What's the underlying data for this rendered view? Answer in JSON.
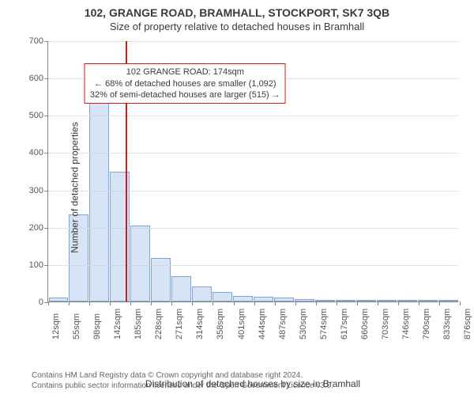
{
  "title": "102, GRANGE ROAD, BRAMHALL, STOCKPORT, SK7 3QB",
  "subtitle": "Size of property relative to detached houses in Bramhall",
  "ylabel": "Number of detached properties",
  "xlabel": "Distribution of detached houses by size in Bramhall",
  "footer1": "Contains HM Land Registry data © Crown copyright and database right 2024.",
  "footer2": "Contains public sector information licensed under the Open Government Licence v3.0.",
  "chart": {
    "type": "histogram",
    "ylim": [
      0,
      700
    ],
    "ytick_step": 100,
    "yticks": [
      0,
      100,
      200,
      300,
      400,
      500,
      600,
      700
    ],
    "xtick_labels": [
      "12sqm",
      "55sqm",
      "98sqm",
      "142sqm",
      "185sqm",
      "228sqm",
      "271sqm",
      "314sqm",
      "358sqm",
      "401sqm",
      "444sqm",
      "487sqm",
      "530sqm",
      "574sqm",
      "617sqm",
      "660sqm",
      "703sqm",
      "746sqm",
      "790sqm",
      "833sqm",
      "876sqm"
    ],
    "xtick_start": 12,
    "xtick_step": 43.3,
    "x_min": 12,
    "x_max": 876,
    "bar_color": "#d6e4f5",
    "bar_border": "#7ea6d9",
    "grid_color": "#c8c8c8",
    "background_color": "#ffffff",
    "bars": [
      10,
      235,
      600,
      348,
      205,
      117,
      68,
      40,
      25,
      15,
      12,
      10,
      7,
      3,
      2,
      2,
      1,
      1,
      0,
      1
    ],
    "vline": {
      "x_value": 174,
      "color": "#d11a1a"
    },
    "annotation": {
      "line1": "102 GRANGE ROAD: 174sqm",
      "line2": "← 68% of detached houses are smaller (1,092)",
      "line3": "32% of semi-detached houses are larger (515) →",
      "border_color": "#d11a1a",
      "x_center_value": 300,
      "y_value": 640
    }
  }
}
